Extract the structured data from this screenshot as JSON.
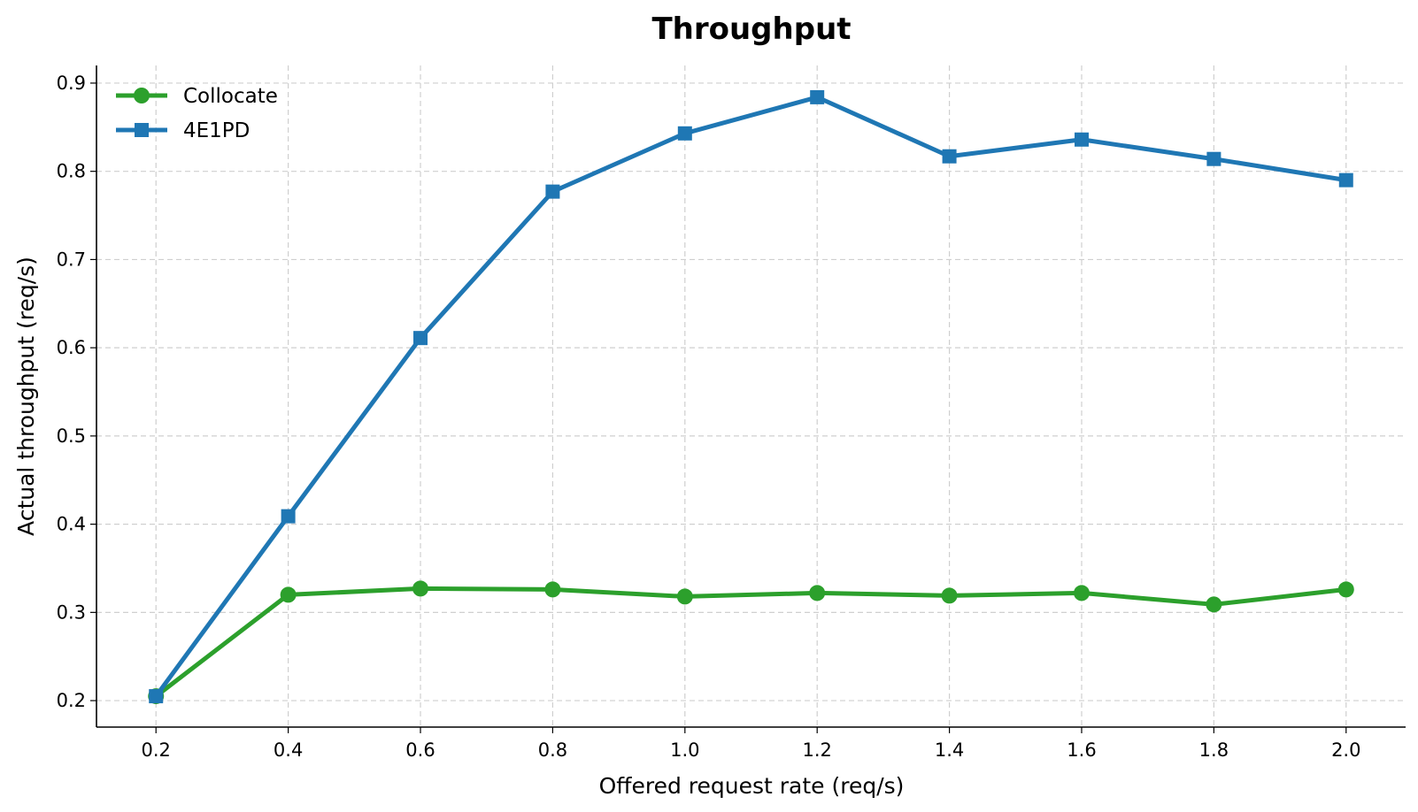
{
  "chart_data": {
    "type": "line",
    "title": "Throughput",
    "xlabel": "Offered request rate (req/s)",
    "ylabel": "Actual throughput (req/s)",
    "x": [
      0.2,
      0.4,
      0.6,
      0.8,
      1.0,
      1.2,
      1.4,
      1.6,
      1.8,
      2.0
    ],
    "x_tick_labels": [
      "0.2",
      "0.4",
      "0.6",
      "0.8",
      "1.0",
      "1.2",
      "1.4",
      "1.6",
      "1.8",
      "2.0"
    ],
    "y_ticks": [
      0.2,
      0.3,
      0.4,
      0.5,
      0.6,
      0.7,
      0.8,
      0.9
    ],
    "y_tick_labels": [
      "0.2",
      "0.3",
      "0.4",
      "0.5",
      "0.6",
      "0.7",
      "0.8",
      "0.9"
    ],
    "xlim": [
      0.11,
      2.09
    ],
    "ylim": [
      0.17,
      0.92
    ],
    "grid": true,
    "legend_position": "top-left",
    "series": [
      {
        "name": "Collocate",
        "color": "#2ca02c",
        "marker": "circle",
        "values": [
          0.205,
          0.32,
          0.327,
          0.326,
          0.318,
          0.322,
          0.319,
          0.322,
          0.309,
          0.326
        ]
      },
      {
        "name": "4E1PD",
        "color": "#1f77b4",
        "marker": "square",
        "values": [
          0.205,
          0.409,
          0.611,
          0.777,
          0.843,
          0.884,
          0.817,
          0.836,
          0.814,
          0.79
        ]
      }
    ]
  }
}
